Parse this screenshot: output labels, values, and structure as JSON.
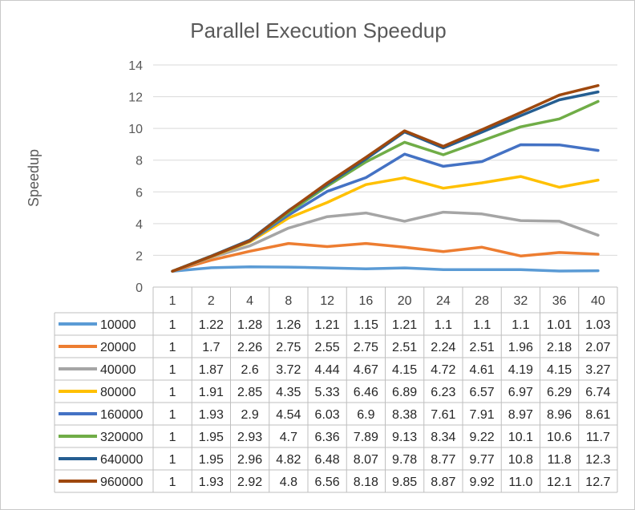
{
  "chart_data": {
    "type": "line",
    "title": "Parallel Execution Speedup",
    "xlabel": "",
    "ylabel": "Speedup",
    "categories": [
      "1",
      "2",
      "4",
      "8",
      "12",
      "16",
      "20",
      "24",
      "28",
      "32",
      "36",
      "40"
    ],
    "ylim": [
      0,
      14
    ],
    "yticks": [
      0,
      2,
      4,
      6,
      8,
      10,
      12,
      14
    ],
    "grid": true,
    "legend": "data-table",
    "series": [
      {
        "name": "10000",
        "color": "#5b9bd5",
        "values": [
          1,
          1.22,
          1.28,
          1.26,
          1.21,
          1.15,
          1.21,
          1.1,
          1.1,
          1.1,
          1.01,
          1.03
        ],
        "labels": [
          "1",
          "1.22",
          "1.28",
          "1.26",
          "1.21",
          "1.15",
          "1.21",
          "1.1",
          "1.1",
          "1.1",
          "1.01",
          "1.03"
        ]
      },
      {
        "name": "20000",
        "color": "#ed7d31",
        "values": [
          1,
          1.7,
          2.26,
          2.75,
          2.55,
          2.75,
          2.51,
          2.24,
          2.51,
          1.96,
          2.18,
          2.07
        ],
        "labels": [
          "1",
          "1.7",
          "2.26",
          "2.75",
          "2.55",
          "2.75",
          "2.51",
          "2.24",
          "2.51",
          "1.96",
          "2.18",
          "2.07"
        ]
      },
      {
        "name": "40000",
        "color": "#a5a5a5",
        "values": [
          1,
          1.87,
          2.6,
          3.72,
          4.44,
          4.67,
          4.15,
          4.72,
          4.61,
          4.19,
          4.15,
          3.27
        ],
        "labels": [
          "1",
          "1.87",
          "2.6",
          "3.72",
          "4.44",
          "4.67",
          "4.15",
          "4.72",
          "4.61",
          "4.19",
          "4.15",
          "3.27"
        ]
      },
      {
        "name": "80000",
        "color": "#ffc000",
        "values": [
          1,
          1.91,
          2.85,
          4.35,
          5.33,
          6.46,
          6.89,
          6.23,
          6.57,
          6.97,
          6.29,
          6.74
        ],
        "labels": [
          "1",
          "1.91",
          "2.85",
          "4.35",
          "5.33",
          "6.46",
          "6.89",
          "6.23",
          "6.57",
          "6.97",
          "6.29",
          "6.74"
        ]
      },
      {
        "name": "160000",
        "color": "#4472c4",
        "values": [
          1,
          1.93,
          2.9,
          4.54,
          6.03,
          6.9,
          8.38,
          7.61,
          7.91,
          8.97,
          8.96,
          8.61
        ],
        "labels": [
          "1",
          "1.93",
          "2.9",
          "4.54",
          "6.03",
          "6.9",
          "8.38",
          "7.61",
          "7.91",
          "8.97",
          "8.96",
          "8.61"
        ]
      },
      {
        "name": "320000",
        "color": "#70ad47",
        "values": [
          1,
          1.95,
          2.93,
          4.7,
          6.36,
          7.89,
          9.13,
          8.34,
          9.22,
          10.1,
          10.6,
          11.7
        ],
        "labels": [
          "1",
          "1.95",
          "2.93",
          "4.7",
          "6.36",
          "7.89",
          "9.13",
          "8.34",
          "9.22",
          "10.1",
          "10.6",
          "11.7"
        ]
      },
      {
        "name": "640000",
        "color": "#255e91",
        "values": [
          1,
          1.95,
          2.96,
          4.82,
          6.48,
          8.07,
          9.78,
          8.77,
          9.77,
          10.8,
          11.8,
          12.3
        ],
        "labels": [
          "1",
          "1.95",
          "2.96",
          "4.82",
          "6.48",
          "8.07",
          "9.78",
          "8.77",
          "9.77",
          "10.8",
          "11.8",
          "12.3"
        ]
      },
      {
        "name": "960000",
        "color": "#9e480e",
        "values": [
          1,
          1.93,
          2.92,
          4.8,
          6.56,
          8.18,
          9.85,
          8.87,
          9.92,
          11.0,
          12.1,
          12.7
        ],
        "labels": [
          "1",
          "1.93",
          "2.92",
          "4.8",
          "6.56",
          "8.18",
          "9.85",
          "8.87",
          "9.92",
          "11.0",
          "12.1",
          "12.7"
        ]
      }
    ]
  }
}
